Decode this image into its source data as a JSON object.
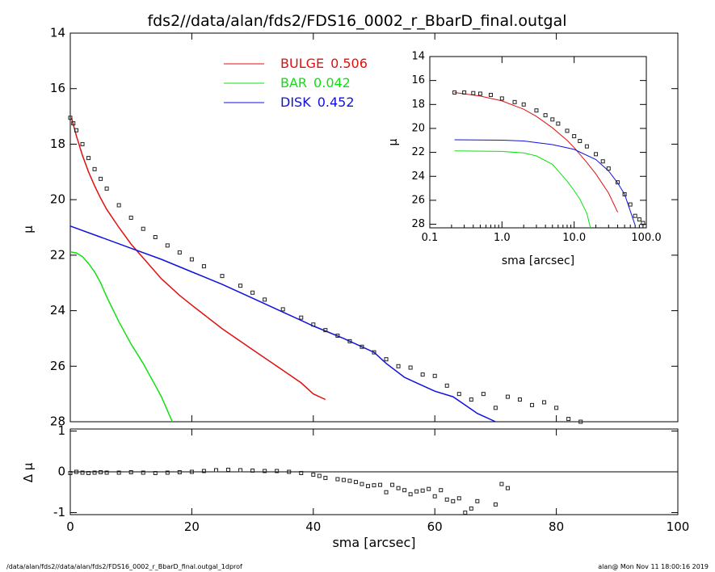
{
  "footer": {
    "left": "/data/alan/fds2//data/alan/fds2/FDS16_0002_r_BbarD_final.outgal_1dprof",
    "right": "alan@  Mon Nov 11 18:00:16 2019"
  },
  "chart_data": [
    {
      "id": "main-profile",
      "type": "line",
      "title": "fds2//data/alan/fds2/FDS16_0002_r_BbarD_final.outgal",
      "xlabel": "",
      "ylabel": "μ",
      "xlim": [
        0,
        100
      ],
      "ylim": [
        28,
        14
      ],
      "x_ticks": [
        0,
        20,
        40,
        60,
        80,
        100
      ],
      "y_ticks": [
        14,
        16,
        18,
        20,
        22,
        24,
        26,
        28
      ],
      "legend_position": "top-center",
      "legend": [
        {
          "name": "BULGE",
          "value": "0.506",
          "color": "#e01010"
        },
        {
          "name": "BAR",
          "value": "0.042",
          "color": "#10e010"
        },
        {
          "name": "DISK",
          "value": "0.452",
          "color": "#1010e0"
        }
      ],
      "series": [
        {
          "name": "BULGE",
          "color": "#e01010",
          "x": [
            0.2,
            1,
            2,
            3,
            4,
            5,
            6,
            8,
            10,
            12,
            15,
            18,
            20,
            25,
            30,
            35,
            38,
            40,
            42
          ],
          "y": [
            17.05,
            17.7,
            18.4,
            19.0,
            19.5,
            19.95,
            20.35,
            21.0,
            21.6,
            22.1,
            22.85,
            23.45,
            23.8,
            24.65,
            25.4,
            26.15,
            26.6,
            27.0,
            27.2
          ]
        },
        {
          "name": "BAR",
          "color": "#10e010",
          "x": [
            0,
            1,
            2,
            3,
            4,
            5,
            6,
            8,
            10,
            12,
            14,
            15,
            16,
            16.8
          ],
          "y": [
            21.88,
            21.92,
            22.05,
            22.3,
            22.6,
            23.0,
            23.5,
            24.4,
            25.2,
            25.9,
            26.7,
            27.1,
            27.6,
            28.0
          ]
        },
        {
          "name": "DISK",
          "color": "#1010e0",
          "x": [
            0,
            5,
            10,
            15,
            20,
            25,
            30,
            35,
            40,
            45,
            50,
            52,
            55,
            57,
            60,
            63,
            65,
            67,
            70
          ],
          "y": [
            20.95,
            21.35,
            21.75,
            22.15,
            22.6,
            23.05,
            23.55,
            24.05,
            24.55,
            25.0,
            25.5,
            25.9,
            26.4,
            26.6,
            26.9,
            27.1,
            27.4,
            27.7,
            28.0
          ]
        },
        {
          "name": "",
          "color": "#222222",
          "style": "points",
          "x": [
            0,
            0.5,
            1,
            2,
            3,
            4,
            5,
            6,
            8,
            10,
            12,
            14,
            16,
            18,
            20,
            22,
            25,
            28,
            30,
            32,
            35,
            38,
            40,
            42,
            44,
            46,
            48,
            50,
            52,
            54,
            56,
            58,
            60,
            62,
            64,
            66,
            68,
            70,
            72,
            74,
            76,
            78,
            80,
            82,
            84
          ],
          "y": [
            17.05,
            17.25,
            17.5,
            18.0,
            18.5,
            18.9,
            19.25,
            19.6,
            20.2,
            20.65,
            21.05,
            21.35,
            21.65,
            21.9,
            22.15,
            22.4,
            22.75,
            23.1,
            23.35,
            23.6,
            23.95,
            24.25,
            24.5,
            24.7,
            24.9,
            25.1,
            25.3,
            25.5,
            25.75,
            26.0,
            26.05,
            26.3,
            26.35,
            26.7,
            27.0,
            27.2,
            27.0,
            27.5,
            27.1,
            27.2,
            27.4,
            27.3,
            27.5,
            27.9,
            28.0
          ]
        }
      ]
    },
    {
      "id": "inset-log-profile",
      "type": "line",
      "title": "",
      "xlabel": "sma [arcsec]",
      "ylabel": "μ",
      "xscale": "log",
      "xlim": [
        0.1,
        100
      ],
      "ylim": [
        28.3,
        14
      ],
      "x_tick_labels": [
        "0.1",
        "1.0",
        "10.0",
        "100.0"
      ],
      "y_ticks": [
        14,
        16,
        18,
        20,
        22,
        24,
        26,
        28
      ],
      "series": [
        {
          "name": "BULGE",
          "color": "#e01010",
          "x": [
            0.22,
            0.5,
            1,
            2,
            3,
            5,
            8,
            10,
            15,
            20,
            30,
            40
          ],
          "y": [
            17.0,
            17.3,
            17.7,
            18.4,
            19.0,
            19.95,
            21.0,
            21.6,
            22.85,
            23.8,
            25.4,
            27.0
          ]
        },
        {
          "name": "BAR",
          "color": "#10e010",
          "x": [
            0.22,
            1,
            2,
            3,
            5,
            8,
            10,
            12,
            15,
            16.8
          ],
          "y": [
            21.88,
            21.92,
            22.05,
            22.3,
            23.0,
            24.4,
            25.2,
            25.9,
            27.1,
            28.3
          ]
        },
        {
          "name": "DISK",
          "color": "#1010e0",
          "x": [
            0.22,
            1,
            2,
            5,
            10,
            20,
            30,
            40,
            50,
            60,
            70
          ],
          "y": [
            20.95,
            20.98,
            21.05,
            21.35,
            21.75,
            22.6,
            23.55,
            24.55,
            25.5,
            26.9,
            28.1
          ]
        },
        {
          "name": "",
          "color": "#222222",
          "style": "points",
          "x": [
            0.22,
            0.3,
            0.4,
            0.5,
            0.7,
            1,
            1.5,
            2,
            3,
            4,
            5,
            6,
            8,
            10,
            12,
            15,
            20,
            25,
            30,
            40,
            50,
            60,
            70,
            80,
            90
          ],
          "y": [
            17.0,
            17.0,
            17.05,
            17.1,
            17.2,
            17.5,
            17.8,
            18.0,
            18.5,
            18.9,
            19.25,
            19.6,
            20.2,
            20.65,
            21.05,
            21.5,
            22.15,
            22.75,
            23.35,
            24.5,
            25.5,
            26.35,
            27.3,
            27.6,
            27.9
          ]
        }
      ]
    },
    {
      "id": "residuals",
      "type": "scatter",
      "title": "",
      "xlabel": "sma [arcsec]",
      "ylabel": "Δ μ",
      "xlim": [
        0,
        100
      ],
      "ylim": [
        -1.05,
        1.05
      ],
      "x_ticks": [
        0,
        20,
        40,
        60,
        80,
        100
      ],
      "y_ticks": [
        -1,
        0,
        1
      ],
      "zero_line": true,
      "series": [
        {
          "name": "",
          "color": "#222222",
          "x": [
            0,
            1,
            2,
            3,
            4,
            5,
            6,
            8,
            10,
            12,
            14,
            16,
            18,
            20,
            22,
            24,
            26,
            28,
            30,
            32,
            34,
            36,
            38,
            40,
            41,
            42,
            44,
            45,
            46,
            47,
            48,
            49,
            50,
            51,
            52,
            53,
            54,
            55,
            56,
            57,
            58,
            59,
            60,
            61,
            62,
            63,
            64,
            65,
            66,
            67,
            70,
            71,
            72
          ],
          "y": [
            -0.03,
            0.0,
            -0.02,
            -0.03,
            -0.02,
            -0.01,
            -0.02,
            -0.02,
            -0.01,
            -0.02,
            -0.03,
            -0.02,
            -0.01,
            0.0,
            0.02,
            0.04,
            0.05,
            0.04,
            0.03,
            0.02,
            0.02,
            0.0,
            -0.03,
            -0.07,
            -0.1,
            -0.15,
            -0.18,
            -0.2,
            -0.22,
            -0.25,
            -0.3,
            -0.35,
            -0.33,
            -0.32,
            -0.5,
            -0.32,
            -0.4,
            -0.45,
            -0.55,
            -0.48,
            -0.46,
            -0.42,
            -0.6,
            -0.45,
            -0.68,
            -0.72,
            -0.65,
            -1.0,
            -0.9,
            -0.72,
            -0.8,
            -0.3,
            -0.4
          ]
        }
      ]
    }
  ]
}
